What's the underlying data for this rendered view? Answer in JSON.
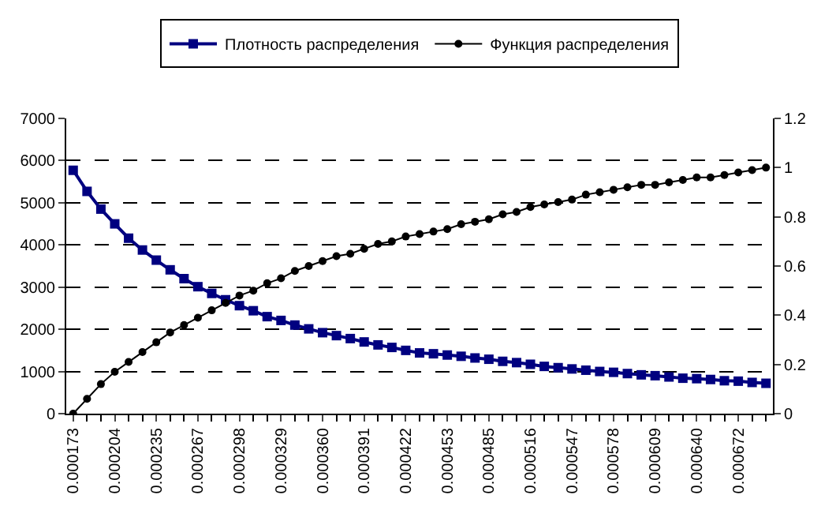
{
  "chart_data": {
    "type": "line",
    "categories": [
      "0.000173",
      null,
      null,
      "0.000204",
      null,
      null,
      "0.000235",
      null,
      null,
      "0.000267",
      null,
      null,
      "0.000298",
      null,
      null,
      "0.000329",
      null,
      null,
      "0.000360",
      null,
      null,
      "0.000391",
      null,
      null,
      "0.000422",
      null,
      null,
      "0.000453",
      null,
      null,
      "0.000485",
      null,
      null,
      "0.000516",
      null,
      null,
      "0.000547",
      null,
      null,
      "0.000578",
      null,
      null,
      "0.000609",
      null,
      null,
      "0.000640",
      null,
      null,
      "0.000672",
      null,
      null
    ],
    "series": [
      {
        "name": "Плотность распределения",
        "color": "#000080",
        "marker": "square",
        "values": [
          5770,
          5270,
          4850,
          4500,
          4160,
          3880,
          3640,
          3410,
          3200,
          3010,
          2850,
          2700,
          2560,
          2440,
          2300,
          2210,
          2100,
          2010,
          1920,
          1850,
          1780,
          1700,
          1630,
          1570,
          1500,
          1440,
          1420,
          1390,
          1360,
          1320,
          1290,
          1240,
          1210,
          1170,
          1120,
          1090,
          1060,
          1030,
          1000,
          980,
          950,
          920,
          900,
          870,
          840,
          830,
          810,
          780,
          770,
          740,
          720
        ]
      },
      {
        "name": "Функция распределения",
        "color": "#000000",
        "marker": "circle",
        "axis": "y2",
        "values": [
          0,
          0.06,
          0.12,
          0.17,
          0.21,
          0.25,
          0.29,
          0.33,
          0.36,
          0.39,
          0.42,
          0.45,
          0.48,
          0.5,
          0.53,
          0.55,
          0.58,
          0.6,
          0.62,
          0.64,
          0.65,
          0.67,
          0.69,
          0.7,
          0.72,
          0.73,
          0.74,
          0.75,
          0.77,
          0.78,
          0.79,
          0.81,
          0.82,
          0.84,
          0.85,
          0.86,
          0.87,
          0.89,
          0.9,
          0.91,
          0.92,
          0.93,
          0.93,
          0.94,
          0.95,
          0.96,
          0.96,
          0.97,
          0.98,
          0.99,
          1.0
        ]
      }
    ],
    "ylim": [
      0,
      7000
    ],
    "yticks": [
      0,
      1000,
      2000,
      3000,
      4000,
      5000,
      6000,
      7000
    ],
    "y2lim": [
      0,
      1.2
    ],
    "y2ticks": [
      0,
      0.2,
      0.4,
      0.6,
      0.8,
      1,
      1.2
    ],
    "grid": "y",
    "legend": "top"
  }
}
